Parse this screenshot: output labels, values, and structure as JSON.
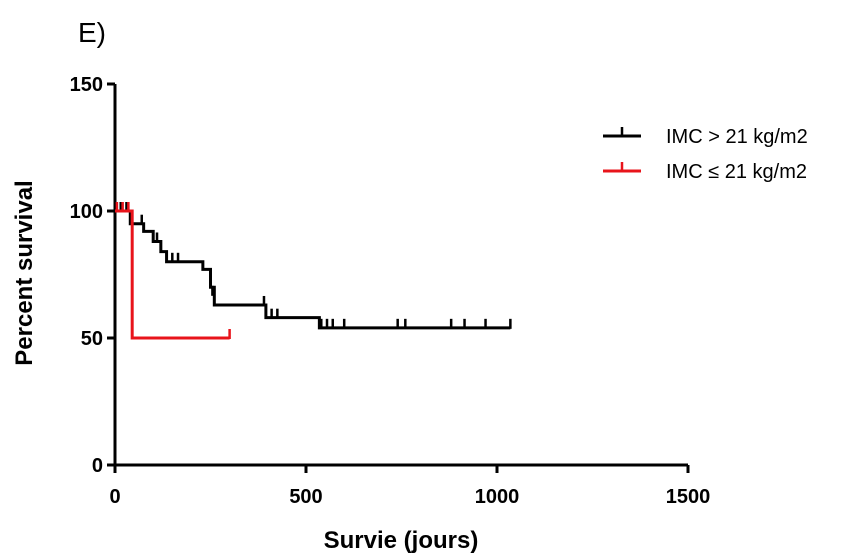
{
  "chart_data": {
    "type": "line",
    "panel_label": "E)",
    "xlabel": "Survie (jours)",
    "ylabel": "Percent survival",
    "xlim": [
      0,
      1500
    ],
    "ylim": [
      0,
      150
    ],
    "xticks": [
      0,
      500,
      1000,
      1500
    ],
    "yticks": [
      0,
      50,
      100,
      150
    ],
    "legend_position": "top-right",
    "grid": false,
    "series": [
      {
        "name": "IMC > 21 kg/m2",
        "color": "#000000",
        "steps": [
          [
            0,
            100
          ],
          [
            25,
            100
          ],
          [
            40,
            95
          ],
          [
            75,
            92
          ],
          [
            100,
            88
          ],
          [
            120,
            84
          ],
          [
            135,
            80
          ],
          [
            215,
            80
          ],
          [
            230,
            77
          ],
          [
            250,
            70
          ],
          [
            260,
            63
          ],
          [
            385,
            63
          ],
          [
            395,
            58
          ],
          [
            530,
            58
          ],
          [
            535,
            54
          ],
          [
            1035,
            54
          ]
        ],
        "censored": [
          [
            15,
            100
          ],
          [
            30,
            100
          ],
          [
            70,
            95
          ],
          [
            110,
            88
          ],
          [
            150,
            80
          ],
          [
            165,
            80
          ],
          [
            255,
            67
          ],
          [
            390,
            63
          ],
          [
            410,
            58
          ],
          [
            425,
            58
          ],
          [
            540,
            54
          ],
          [
            555,
            54
          ],
          [
            570,
            54
          ],
          [
            600,
            54
          ],
          [
            740,
            54
          ],
          [
            760,
            54
          ],
          [
            880,
            54
          ],
          [
            915,
            54
          ],
          [
            970,
            54
          ],
          [
            1035,
            54
          ]
        ]
      },
      {
        "name": "IMC ≤ 21 kg/m2",
        "color": "#e8141b",
        "steps": [
          [
            0,
            100
          ],
          [
            45,
            100
          ],
          [
            45,
            50
          ],
          [
            300,
            50
          ]
        ],
        "censored": [
          [
            5,
            100
          ],
          [
            20,
            100
          ],
          [
            35,
            100
          ],
          [
            300,
            50
          ]
        ]
      }
    ]
  }
}
